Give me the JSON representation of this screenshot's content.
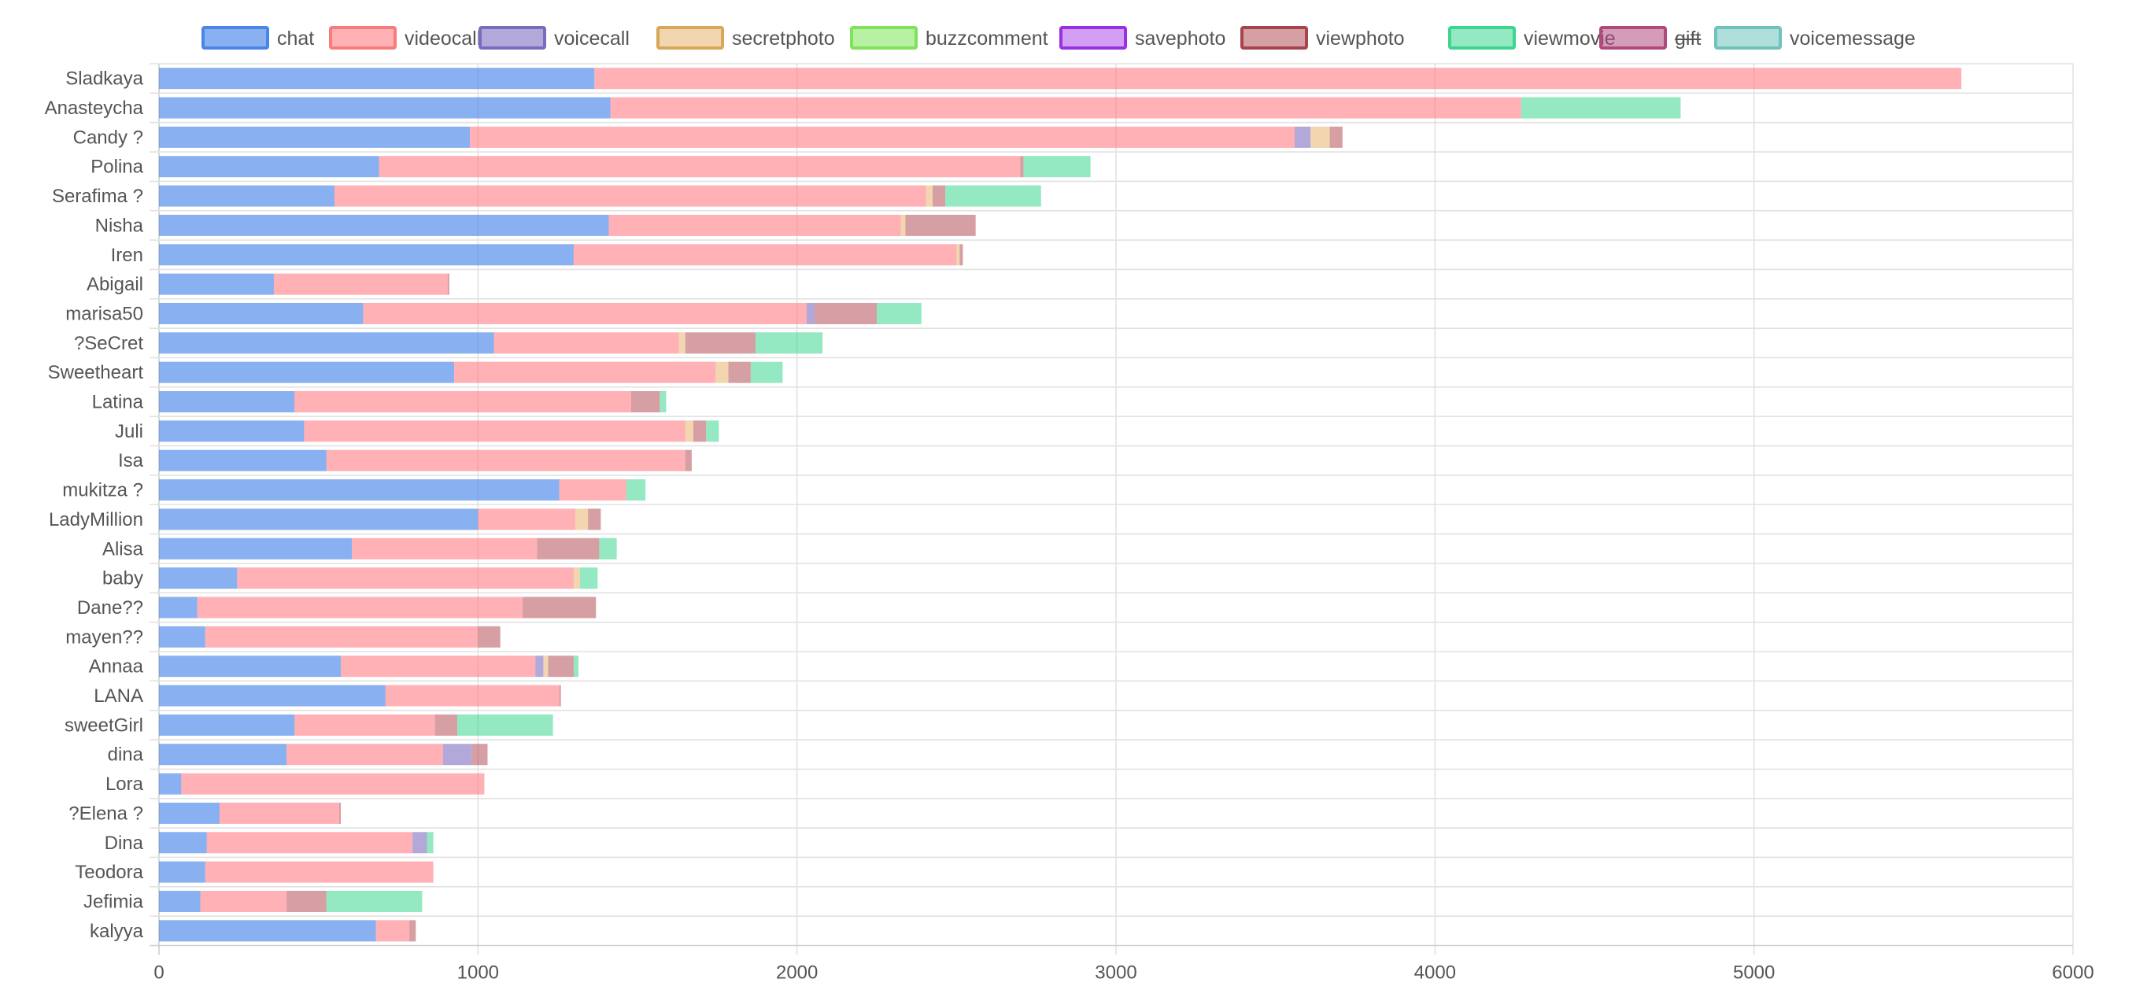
{
  "chart_data": {
    "type": "bar",
    "orientation": "horizontal",
    "stacked": true,
    "title": "",
    "xlabel": "",
    "ylabel": "",
    "xlim": [
      0,
      6000
    ],
    "x_ticks": [
      "0",
      "1000",
      "2000",
      "3000",
      "4000",
      "5000",
      "6000"
    ],
    "grid": true,
    "legend_position": "top",
    "categories": [
      "Sladkaya",
      "Anasteycha",
      "Candy ?",
      "Polina",
      "Serafima ?",
      "Nisha",
      "Iren",
      "Abigail",
      "marisa50",
      "?SeCret",
      "Sweetheart",
      "Latina",
      "Juli",
      "Isa",
      "mukitza ?",
      "LadyMillion",
      "Alisa",
      "baby",
      "Dane??",
      "mayen??",
      "Annaa",
      "LANA",
      "sweetGirl",
      "dina",
      "Lora",
      "?Elena ?",
      "Dina",
      "Teodora",
      "Jefimia",
      "kalyya"
    ],
    "series": [
      {
        "name": "chat",
        "color": "#4a86e8",
        "fill": "rgba(74,134,232,0.65)",
        "hidden": false,
        "values": [
          1365,
          1415,
          975,
          690,
          550,
          1410,
          1300,
          360,
          640,
          1050,
          925,
          425,
          455,
          525,
          1255,
          1000,
          605,
          245,
          120,
          145,
          570,
          710,
          425,
          400,
          70,
          190,
          150,
          145,
          130,
          680
        ]
      },
      {
        "name": "videocall",
        "color": "#f77c7c",
        "fill": "rgba(255,120,130,0.58)",
        "hidden": false,
        "values": [
          4285,
          2855,
          2585,
          2010,
          1855,
          915,
          1200,
          545,
          1390,
          580,
          820,
          1055,
          1195,
          1125,
          210,
          305,
          580,
          1055,
          1020,
          855,
          610,
          545,
          440,
          490,
          950,
          375,
          645,
          715,
          270,
          105
        ]
      },
      {
        "name": "voicecall",
        "color": "#7b6bbf",
        "fill": "rgba(123,107,191,0.58)",
        "hidden": false,
        "values": [
          0,
          0,
          50,
          0,
          0,
          0,
          0,
          0,
          25,
          0,
          0,
          0,
          0,
          0,
          0,
          0,
          0,
          0,
          0,
          0,
          25,
          0,
          0,
          90,
          0,
          0,
          45,
          0,
          0,
          0
        ]
      },
      {
        "name": "secretphoto",
        "color": "#d9a75a",
        "fill": "rgba(230,180,110,0.55)",
        "hidden": false,
        "values": [
          0,
          0,
          60,
          0,
          20,
          15,
          10,
          0,
          0,
          20,
          40,
          0,
          25,
          0,
          0,
          40,
          0,
          20,
          0,
          0,
          15,
          0,
          0,
          0,
          0,
          0,
          0,
          0,
          0,
          0
        ]
      },
      {
        "name": "buzzcomment",
        "color": "#7ee35a",
        "fill": "rgba(126,227,90,0.55)",
        "hidden": false,
        "values": [
          0,
          0,
          0,
          0,
          0,
          0,
          0,
          0,
          0,
          0,
          0,
          0,
          0,
          0,
          0,
          0,
          0,
          0,
          0,
          0,
          0,
          0,
          0,
          0,
          0,
          0,
          0,
          0,
          0,
          0
        ]
      },
      {
        "name": "savephoto",
        "color": "#9b30e0",
        "fill": "rgba(175,80,235,0.55)",
        "hidden": false,
        "values": [
          0,
          0,
          0,
          0,
          0,
          0,
          0,
          0,
          0,
          0,
          0,
          0,
          0,
          0,
          0,
          0,
          0,
          0,
          0,
          0,
          0,
          0,
          0,
          0,
          0,
          0,
          0,
          0,
          0,
          0
        ]
      },
      {
        "name": "viewphoto",
        "color": "#a8454c",
        "fill": "rgba(180,80,88,0.55)",
        "hidden": false,
        "values": [
          0,
          0,
          40,
          10,
          40,
          220,
          10,
          5,
          195,
          220,
          70,
          90,
          40,
          20,
          0,
          40,
          195,
          0,
          230,
          70,
          80,
          5,
          70,
          50,
          0,
          5,
          0,
          0,
          125,
          20
        ]
      },
      {
        "name": "viewmovie",
        "color": "#3dd68f",
        "fill": "rgba(61,214,143,0.55)",
        "hidden": false,
        "values": [
          0,
          500,
          0,
          210,
          300,
          0,
          0,
          0,
          140,
          210,
          100,
          20,
          40,
          0,
          60,
          0,
          55,
          55,
          0,
          0,
          15,
          0,
          300,
          0,
          0,
          0,
          20,
          0,
          300,
          0
        ]
      },
      {
        "name": "gift",
        "color": "#b04a7d",
        "fill": "rgba(176,74,125,0.55)",
        "hidden": true,
        "values": [
          25,
          0,
          0,
          0,
          0,
          0,
          0,
          0,
          0,
          0,
          0,
          0,
          0,
          0,
          0,
          0,
          0,
          0,
          0,
          0,
          0,
          0,
          0,
          0,
          0,
          0,
          0,
          0,
          0,
          0
        ]
      },
      {
        "name": "voicemessage",
        "color": "#70c2bc",
        "fill": "rgba(112,194,188,0.55)",
        "hidden": false,
        "values": [
          0,
          0,
          0,
          0,
          0,
          0,
          0,
          0,
          0,
          0,
          0,
          0,
          0,
          0,
          0,
          0,
          0,
          0,
          0,
          0,
          0,
          0,
          0,
          0,
          0,
          0,
          0,
          0,
          0,
          0
        ]
      }
    ]
  }
}
